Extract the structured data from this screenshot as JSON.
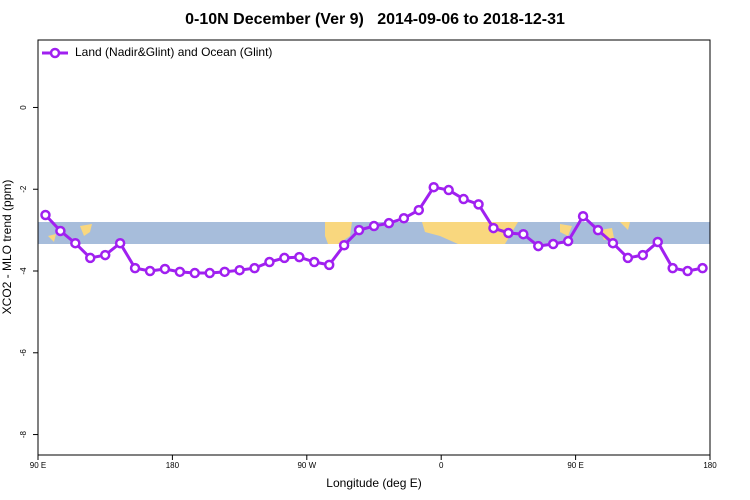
{
  "chart_data": {
    "type": "line",
    "title": "0-10N December (Ver 9)   2014-09-06 to 2018-12-31",
    "xlabel": "Longitude (deg E)",
    "ylabel": "XCO2 - MLO trend (ppm)",
    "xlim": [
      90,
      540
    ],
    "ylim": [
      -8.5,
      1.65
    ],
    "xticks": [
      {
        "value": 90,
        "label": "90 E"
      },
      {
        "value": 180,
        "label": "180"
      },
      {
        "value": 270,
        "label": "90 W"
      },
      {
        "value": 360,
        "label": "0"
      },
      {
        "value": 450,
        "label": "90 E"
      },
      {
        "value": 540,
        "label": "180"
      }
    ],
    "yticks": [
      0,
      -2,
      -4,
      -6,
      -8
    ],
    "legend_position": "top-left",
    "series": [
      {
        "name": "Land (Nadir&Glint) and Ocean (Glint)",
        "color": "#a020f0",
        "x": [
          95,
          105,
          115,
          125,
          135,
          145,
          155,
          165,
          175,
          185,
          195,
          205,
          215,
          225,
          235,
          245,
          255,
          265,
          275,
          285,
          295,
          305,
          315,
          325,
          335,
          345,
          355,
          365,
          375,
          385,
          395,
          405,
          415,
          425,
          435,
          445,
          455,
          465,
          475,
          485,
          495,
          505,
          515,
          525,
          535
        ],
        "values": [
          -2.63,
          -3.02,
          -3.32,
          -3.68,
          -3.61,
          -3.32,
          -3.93,
          -4.0,
          -3.95,
          -4.02,
          -4.05,
          -4.05,
          -4.02,
          -3.98,
          -3.93,
          -3.78,
          -3.68,
          -3.66,
          -3.78,
          -3.85,
          -3.37,
          -3.0,
          -2.9,
          -2.83,
          -2.71,
          -2.51,
          -1.95,
          -2.02,
          -2.24,
          -2.37,
          -2.95,
          -3.07,
          -3.1,
          -3.39,
          -3.34,
          -3.27,
          -2.66,
          -3.0,
          -3.32,
          -3.68,
          -3.61,
          -3.29,
          -3.93,
          -4.0,
          -3.93
        ]
      }
    ]
  }
}
